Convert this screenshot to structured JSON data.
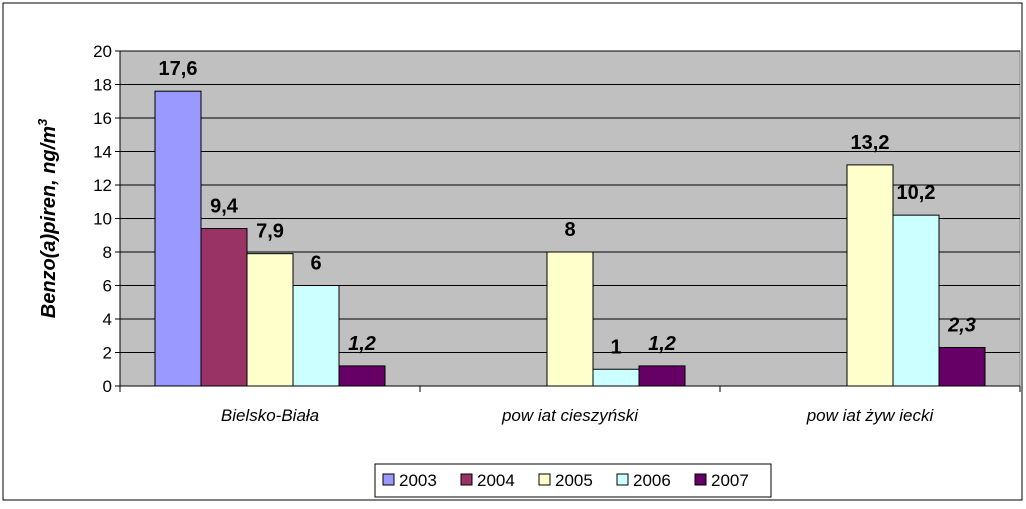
{
  "chart_data": {
    "type": "bar",
    "title": "",
    "xlabel": "",
    "ylabel": "Benzo(a)piren, ng/m",
    "ylabel_superscript": "3",
    "ylim": [
      0,
      20
    ],
    "yticks": [
      0,
      2,
      4,
      6,
      8,
      10,
      12,
      14,
      16,
      18,
      20
    ],
    "grid": true,
    "legend_position": "bottom",
    "categories": [
      "Bielsko-Biała",
      "pow iat cieszyński",
      "pow iat żyw iecki"
    ],
    "series": [
      {
        "name": "2003",
        "color": "#9999ff",
        "values": [
          17.6,
          null,
          null
        ],
        "labels": [
          "17,6",
          "",
          ""
        ]
      },
      {
        "name": "2004",
        "color": "#993366",
        "values": [
          9.4,
          null,
          null
        ],
        "labels": [
          "9,4",
          "",
          ""
        ]
      },
      {
        "name": "2005",
        "color": "#ffffcc",
        "values": [
          7.9,
          8,
          13.2
        ],
        "labels": [
          "7,9",
          "8",
          "13,2"
        ]
      },
      {
        "name": "2006",
        "color": "#ccffff",
        "values": [
          6,
          1,
          10.2
        ],
        "labels": [
          "6",
          "1",
          "10,2"
        ]
      },
      {
        "name": "2007",
        "color": "#660066",
        "values": [
          1.2,
          1.2,
          2.3
        ],
        "labels": [
          "1,2",
          "1,2",
          "2,3"
        ]
      }
    ],
    "colors": {
      "plot_background": "#c0c0c0",
      "bar_border": "#000000"
    }
  }
}
